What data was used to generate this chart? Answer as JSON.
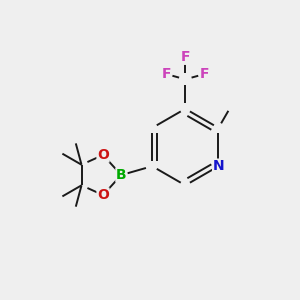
{
  "bg_color": "#efefef",
  "bond_color": "#1a1a1a",
  "bond_lw": 1.4,
  "dbl_sep": 0.07,
  "atom_colors": {
    "N": "#1414cc",
    "O": "#cc1414",
    "B": "#00aa00",
    "F": "#cc44bb",
    "C": "#1a1a1a"
  },
  "afs_large": 10,
  "afs_small": 8,
  "afs_methyl": 7.5
}
